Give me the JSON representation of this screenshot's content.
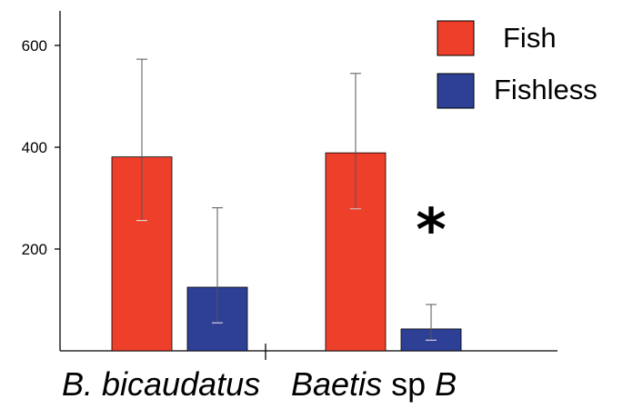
{
  "chart_data": {
    "type": "bar",
    "categories": [
      "B. bicaudatus",
      "Baetis sp B"
    ],
    "category_labels": [
      {
        "italic": "B. bicaudatus",
        "roman": "",
        "italic2": ""
      },
      {
        "italic": "Baetis",
        "roman": " sp ",
        "italic2": "B"
      }
    ],
    "series": [
      {
        "name": "Fish",
        "color": "#ee3f2a",
        "values": [
          381,
          389
        ],
        "error_low": [
          256,
          279
        ],
        "error_high": [
          573,
          545
        ]
      },
      {
        "name": "Fishless",
        "color": "#2e3f96",
        "values": [
          125,
          43
        ],
        "error_low": [
          55,
          21
        ],
        "error_high": [
          281,
          91
        ]
      }
    ],
    "yticks": [
      200,
      400,
      600
    ],
    "ylim": [
      0,
      660
    ],
    "annotations": [
      {
        "text": "*",
        "category": "Baetis sp B",
        "series": "Fishless"
      }
    ],
    "legend_position": "top-right",
    "grid": false
  }
}
